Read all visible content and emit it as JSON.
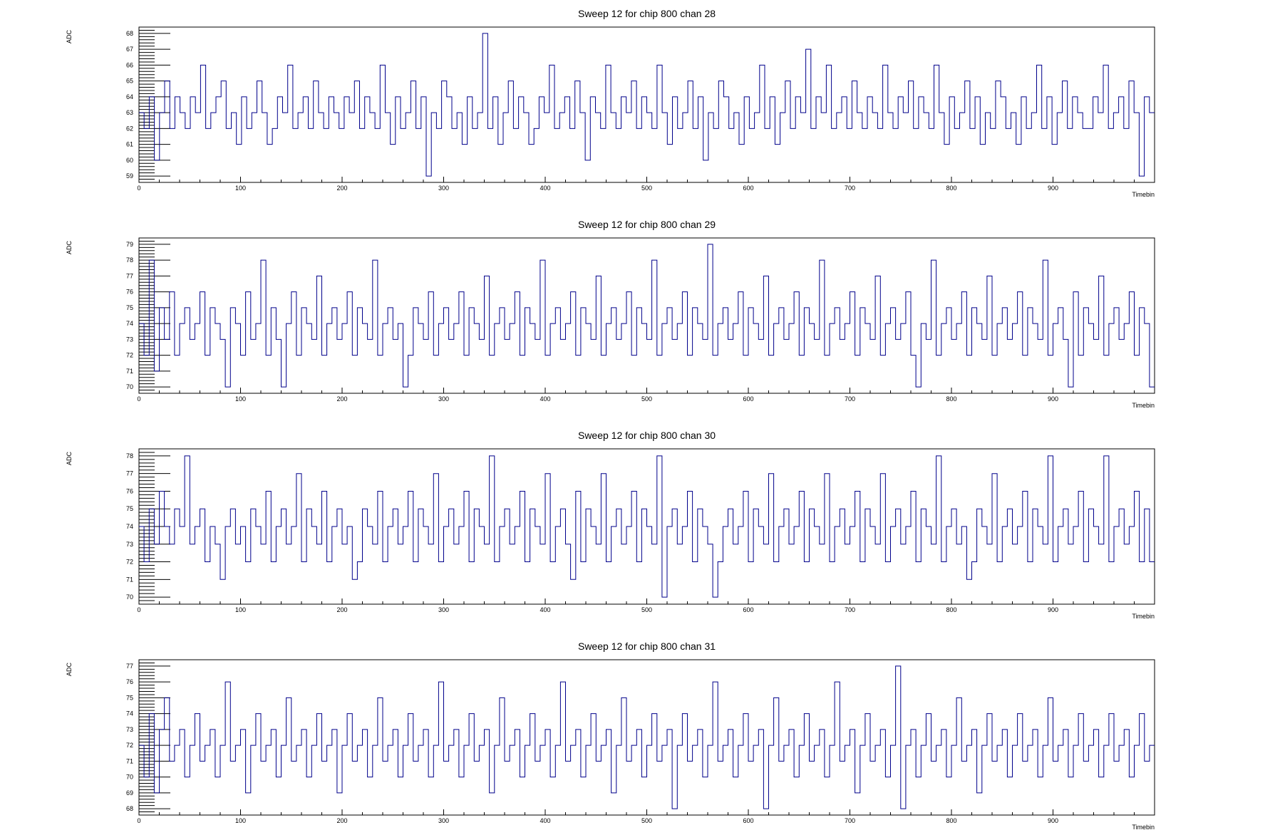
{
  "chart_data": [
    {
      "type": "line",
      "title": "Sweep 12 for chip 800 chan 28",
      "xlabel": "Timebin",
      "ylabel": "ADC",
      "xlim": [
        0,
        1000
      ],
      "ylim": [
        58.6,
        68.4
      ],
      "xticks": [
        0,
        100,
        200,
        300,
        400,
        500,
        600,
        700,
        800,
        900
      ],
      "yticks": [
        59,
        60,
        61,
        62,
        63,
        64,
        65,
        66,
        67,
        68
      ],
      "line_color": "#00008B",
      "baseline": 63,
      "noise_range": [
        59,
        68
      ],
      "series": [
        {
          "values": [
            63,
            62,
            64,
            60,
            63,
            65,
            62,
            64,
            63,
            62,
            64,
            63,
            66,
            62,
            63,
            64,
            65,
            62,
            63,
            61,
            64,
            62,
            63,
            65,
            63,
            61,
            62,
            64,
            63,
            66,
            62,
            63,
            64,
            62,
            65,
            63,
            62,
            64,
            63,
            62,
            64,
            63,
            65,
            62,
            64,
            63,
            62,
            66,
            63,
            61,
            64,
            62,
            63,
            65,
            62,
            64,
            59,
            63,
            62,
            65,
            64,
            62,
            63,
            61,
            64,
            62,
            63,
            68,
            62,
            64,
            61,
            63,
            65,
            62,
            64,
            63,
            61,
            62,
            64,
            63,
            66,
            62,
            63,
            64,
            62,
            65,
            63,
            60,
            64,
            63,
            62,
            66,
            63,
            62,
            64,
            63,
            65,
            62,
            64,
            63,
            62,
            66,
            63,
            61,
            64,
            62,
            63,
            65,
            62,
            64,
            60,
            63,
            62,
            65,
            64,
            62,
            63,
            61,
            64,
            62,
            63,
            66,
            62,
            64,
            61,
            63,
            65,
            62,
            64,
            63,
            67,
            62,
            64,
            63,
            66,
            62,
            63,
            64,
            62,
            65,
            63,
            62,
            64,
            63,
            62,
            66,
            63,
            62,
            64,
            63,
            65,
            62,
            64,
            63,
            62,
            66,
            63,
            61,
            64,
            62,
            63,
            65,
            62,
            64,
            61,
            63,
            62,
            65,
            64,
            62,
            63,
            61,
            64,
            62,
            63,
            66,
            62,
            64,
            61,
            63,
            65,
            62,
            64,
            63,
            62,
            62,
            64,
            63,
            66,
            62,
            63,
            64,
            62,
            65,
            63,
            59,
            64,
            63
          ]
        }
      ]
    },
    {
      "type": "line",
      "title": "Sweep 12 for chip 800 chan 29",
      "xlabel": "Timebin",
      "ylabel": "ADC",
      "xlim": [
        0,
        1000
      ],
      "ylim": [
        69.6,
        79.4
      ],
      "xticks": [
        0,
        100,
        200,
        300,
        400,
        500,
        600,
        700,
        800,
        900
      ],
      "yticks": [
        70,
        71,
        72,
        73,
        74,
        75,
        76,
        77,
        78,
        79
      ],
      "line_color": "#00008B",
      "baseline": 74,
      "noise_range": [
        70,
        79
      ],
      "series": [
        {
          "values": [
            74,
            72,
            78,
            71,
            75,
            73,
            76,
            72,
            74,
            75,
            73,
            74,
            76,
            72,
            75,
            74,
            73,
            70,
            75,
            74,
            72,
            76,
            73,
            74,
            78,
            72,
            75,
            73,
            70,
            74,
            76,
            72,
            75,
            74,
            73,
            77,
            72,
            74,
            75,
            73,
            74,
            76,
            72,
            75,
            74,
            73,
            78,
            72,
            74,
            75,
            73,
            74,
            70,
            72,
            75,
            74,
            73,
            76,
            72,
            74,
            75,
            73,
            74,
            76,
            72,
            75,
            74,
            73,
            77,
            72,
            74,
            75,
            73,
            74,
            76,
            72,
            75,
            74,
            73,
            78,
            72,
            74,
            75,
            73,
            74,
            76,
            72,
            75,
            74,
            73,
            77,
            72,
            74,
            75,
            73,
            74,
            76,
            72,
            75,
            74,
            73,
            78,
            72,
            74,
            75,
            73,
            74,
            76,
            72,
            75,
            74,
            73,
            79,
            72,
            74,
            75,
            73,
            74,
            76,
            72,
            75,
            74,
            73,
            77,
            72,
            74,
            75,
            73,
            74,
            76,
            72,
            75,
            74,
            73,
            78,
            72,
            74,
            75,
            73,
            74,
            76,
            72,
            75,
            74,
            73,
            77,
            72,
            74,
            75,
            73,
            74,
            76,
            72,
            70,
            74,
            73,
            78,
            72,
            74,
            75,
            73,
            74,
            76,
            72,
            75,
            74,
            73,
            77,
            72,
            74,
            75,
            73,
            74,
            76,
            72,
            75,
            74,
            73,
            78,
            72,
            74,
            75,
            73,
            70,
            76,
            72,
            75,
            74,
            73,
            77,
            72,
            74,
            75,
            73,
            74,
            76,
            72,
            75,
            74,
            70
          ]
        }
      ]
    },
    {
      "type": "line",
      "title": "Sweep 12 for chip 800 chan 30",
      "xlabel": "Timebin",
      "ylabel": "ADC",
      "xlim": [
        0,
        1000
      ],
      "ylim": [
        69.6,
        78.4
      ],
      "xticks": [
        0,
        100,
        200,
        300,
        400,
        500,
        600,
        700,
        800,
        900
      ],
      "yticks": [
        70,
        71,
        72,
        73,
        74,
        75,
        76,
        77,
        78
      ],
      "line_color": "#00008B",
      "baseline": 74,
      "noise_range": [
        70,
        78
      ],
      "series": [
        {
          "values": [
            74,
            72,
            75,
            73,
            76,
            74,
            73,
            75,
            74,
            78,
            73,
            74,
            75,
            72,
            74,
            73,
            71,
            74,
            75,
            73,
            74,
            72,
            75,
            74,
            73,
            76,
            72,
            74,
            75,
            73,
            74,
            77,
            72,
            75,
            74,
            73,
            76,
            72,
            74,
            75,
            73,
            74,
            71,
            72,
            75,
            74,
            73,
            76,
            72,
            74,
            75,
            73,
            74,
            76,
            72,
            75,
            74,
            73,
            77,
            72,
            74,
            75,
            73,
            74,
            76,
            72,
            75,
            74,
            73,
            78,
            72,
            74,
            75,
            73,
            74,
            76,
            72,
            75,
            74,
            73,
            77,
            72,
            74,
            75,
            73,
            71,
            76,
            72,
            75,
            74,
            73,
            77,
            72,
            74,
            75,
            73,
            74,
            76,
            72,
            75,
            74,
            73,
            78,
            70,
            74,
            75,
            73,
            74,
            76,
            72,
            75,
            74,
            73,
            70,
            72,
            74,
            75,
            73,
            74,
            76,
            72,
            75,
            74,
            73,
            77,
            72,
            74,
            75,
            73,
            74,
            76,
            72,
            75,
            74,
            73,
            77,
            72,
            74,
            75,
            73,
            74,
            76,
            72,
            75,
            74,
            73,
            77,
            72,
            74,
            75,
            73,
            74,
            76,
            72,
            75,
            74,
            73,
            78,
            72,
            74,
            75,
            73,
            74,
            71,
            72,
            75,
            74,
            73,
            77,
            72,
            74,
            75,
            73,
            74,
            76,
            72,
            75,
            74,
            73,
            78,
            72,
            74,
            75,
            73,
            74,
            76,
            72,
            75,
            74,
            73,
            78,
            72,
            74,
            75,
            73,
            74,
            76,
            72,
            75,
            72
          ]
        }
      ]
    },
    {
      "type": "line",
      "title": "Sweep 12 for chip 800 chan 31",
      "xlabel": "Timebin",
      "ylabel": "ADC",
      "xlim": [
        0,
        1000
      ],
      "ylim": [
        67.6,
        77.4
      ],
      "xticks": [
        0,
        100,
        200,
        300,
        400,
        500,
        600,
        700,
        800,
        900
      ],
      "yticks": [
        68,
        69,
        70,
        71,
        72,
        73,
        74,
        75,
        76,
        77
      ],
      "line_color": "#00008B",
      "baseline": 72,
      "noise_range": [
        68,
        77
      ],
      "series": [
        {
          "values": [
            72,
            70,
            74,
            69,
            73,
            75,
            71,
            72,
            73,
            70,
            72,
            74,
            71,
            72,
            73,
            70,
            72,
            76,
            71,
            72,
            73,
            69,
            72,
            74,
            71,
            72,
            73,
            70,
            72,
            75,
            71,
            72,
            73,
            70,
            72,
            74,
            71,
            72,
            73,
            69,
            72,
            74,
            71,
            72,
            73,
            70,
            72,
            75,
            71,
            72,
            73,
            70,
            72,
            74,
            71,
            72,
            73,
            70,
            72,
            76,
            71,
            72,
            73,
            70,
            72,
            74,
            71,
            72,
            73,
            69,
            72,
            75,
            71,
            72,
            73,
            70,
            72,
            74,
            71,
            72,
            73,
            70,
            72,
            76,
            71,
            72,
            73,
            70,
            72,
            74,
            71,
            72,
            73,
            69,
            72,
            75,
            71,
            72,
            73,
            70,
            72,
            74,
            71,
            72,
            73,
            68,
            72,
            74,
            71,
            72,
            73,
            70,
            72,
            76,
            71,
            72,
            73,
            70,
            72,
            74,
            71,
            72,
            73,
            68,
            72,
            75,
            71,
            72,
            73,
            70,
            72,
            74,
            71,
            72,
            73,
            70,
            72,
            76,
            71,
            72,
            73,
            69,
            72,
            74,
            71,
            72,
            73,
            70,
            72,
            77,
            68,
            72,
            73,
            70,
            72,
            74,
            71,
            72,
            73,
            70,
            72,
            75,
            71,
            72,
            73,
            69,
            72,
            74,
            71,
            72,
            73,
            70,
            72,
            74,
            71,
            72,
            73,
            70,
            72,
            75,
            71,
            72,
            73,
            70,
            72,
            74,
            71,
            72,
            73,
            70,
            72,
            74,
            71,
            72,
            73,
            70,
            72,
            74,
            71,
            72
          ]
        }
      ]
    }
  ]
}
